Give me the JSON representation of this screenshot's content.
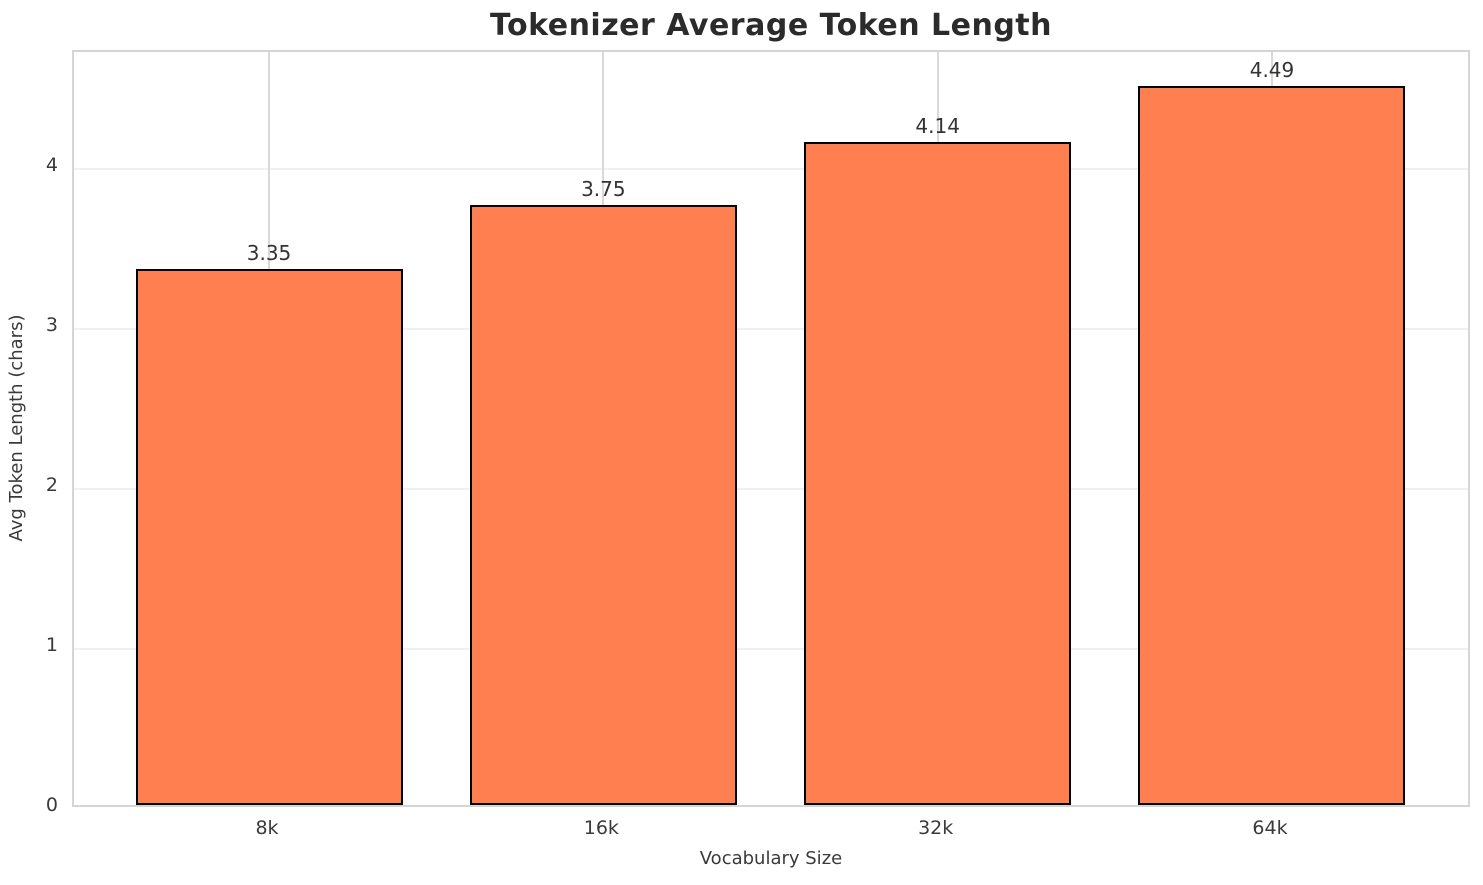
{
  "chart_data": {
    "type": "bar",
    "title": "Tokenizer Average Token Length",
    "xlabel": "Vocabulary Size",
    "ylabel": "Avg Token Length (chars)",
    "categories": [
      "8k",
      "16k",
      "32k",
      "64k"
    ],
    "values": [
      3.35,
      3.75,
      4.14,
      4.49
    ],
    "value_label_decimals": 2,
    "yticks": [
      0,
      1,
      2,
      3,
      4
    ],
    "ylim": [
      0,
      4.73
    ],
    "grid": true,
    "legend_position": "none",
    "colors": {
      "bar_fill": "#FF7F50",
      "bar_edge": "#000000",
      "title_text": "#2b2b2b",
      "tick_text": "#3a3a3a",
      "axis_label_text": "#3a3a3a",
      "spine": "#d5d5d5",
      "vgrid": "#d9d9d9",
      "hgrid": "#f0f0f0",
      "background": "#ffffff"
    }
  }
}
